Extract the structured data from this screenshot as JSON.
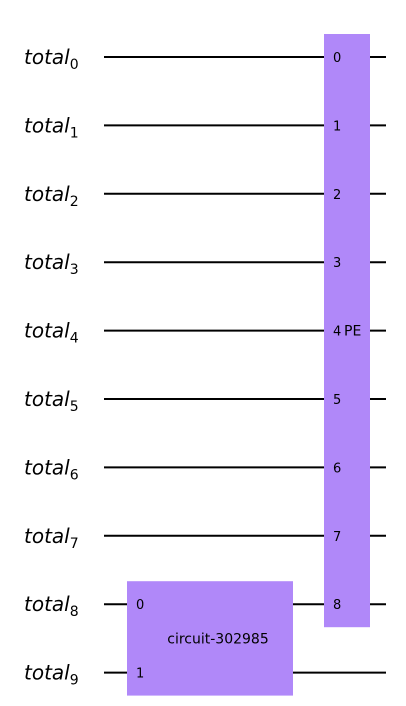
{
  "circuit": {
    "register_name": "total",
    "qubits": [
      "0",
      "1",
      "2",
      "3",
      "4",
      "5",
      "6",
      "7",
      "8",
      "9"
    ],
    "gate_color": "#b088f9",
    "wire_color": "#000000",
    "gates": [
      {
        "id": "pe",
        "label": "PE",
        "targets": [
          0,
          1,
          2,
          3,
          4,
          5,
          6,
          7,
          8
        ],
        "pins": [
          "0",
          "1",
          "2",
          "3",
          "4",
          "5",
          "6",
          "7",
          "8"
        ]
      },
      {
        "id": "circuit",
        "label": "circuit-302985",
        "targets": [
          8,
          9
        ],
        "pins": [
          "0",
          "1"
        ]
      }
    ]
  }
}
